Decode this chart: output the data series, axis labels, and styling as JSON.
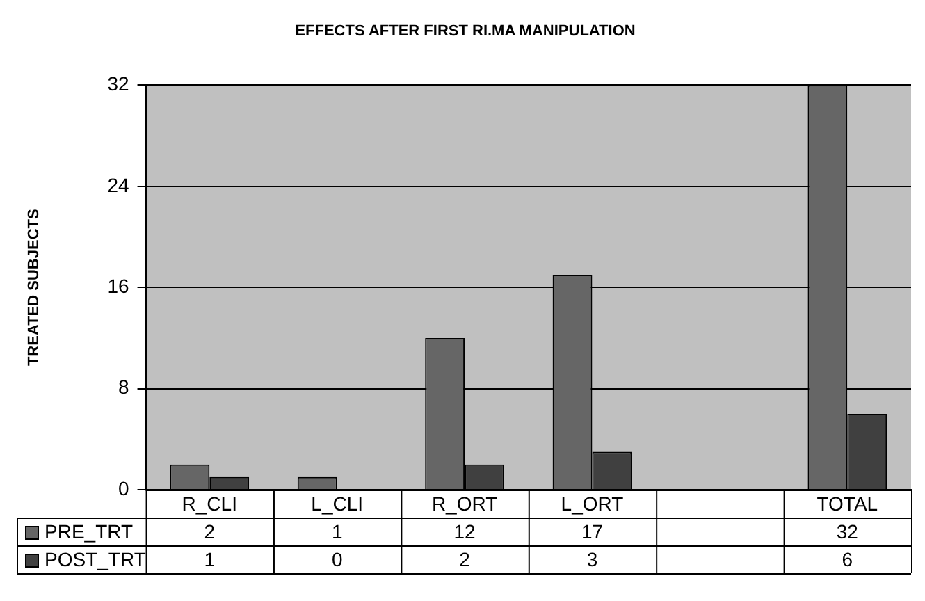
{
  "chart_data": {
    "type": "bar",
    "title": "EFFECTS AFTER FIRST RI.MA MANIPULATION",
    "ylabel": "TREATED SUBJECTS",
    "categories": [
      "R_CLI",
      "L_CLI",
      "R_ORT",
      "L_ORT",
      null,
      "TOTAL"
    ],
    "series": [
      {
        "name": "PRE_TRT",
        "color": "#666666",
        "values": [
          2,
          1,
          12,
          17,
          null,
          32
        ]
      },
      {
        "name": "POST_TRT",
        "color": "#404040",
        "values": [
          1,
          0,
          2,
          3,
          null,
          6
        ]
      }
    ],
    "ylim": [
      0,
      32
    ],
    "yticks": [
      0,
      8,
      16,
      24,
      32
    ],
    "grid": "y",
    "legend": "bottom",
    "data_labels": true
  }
}
